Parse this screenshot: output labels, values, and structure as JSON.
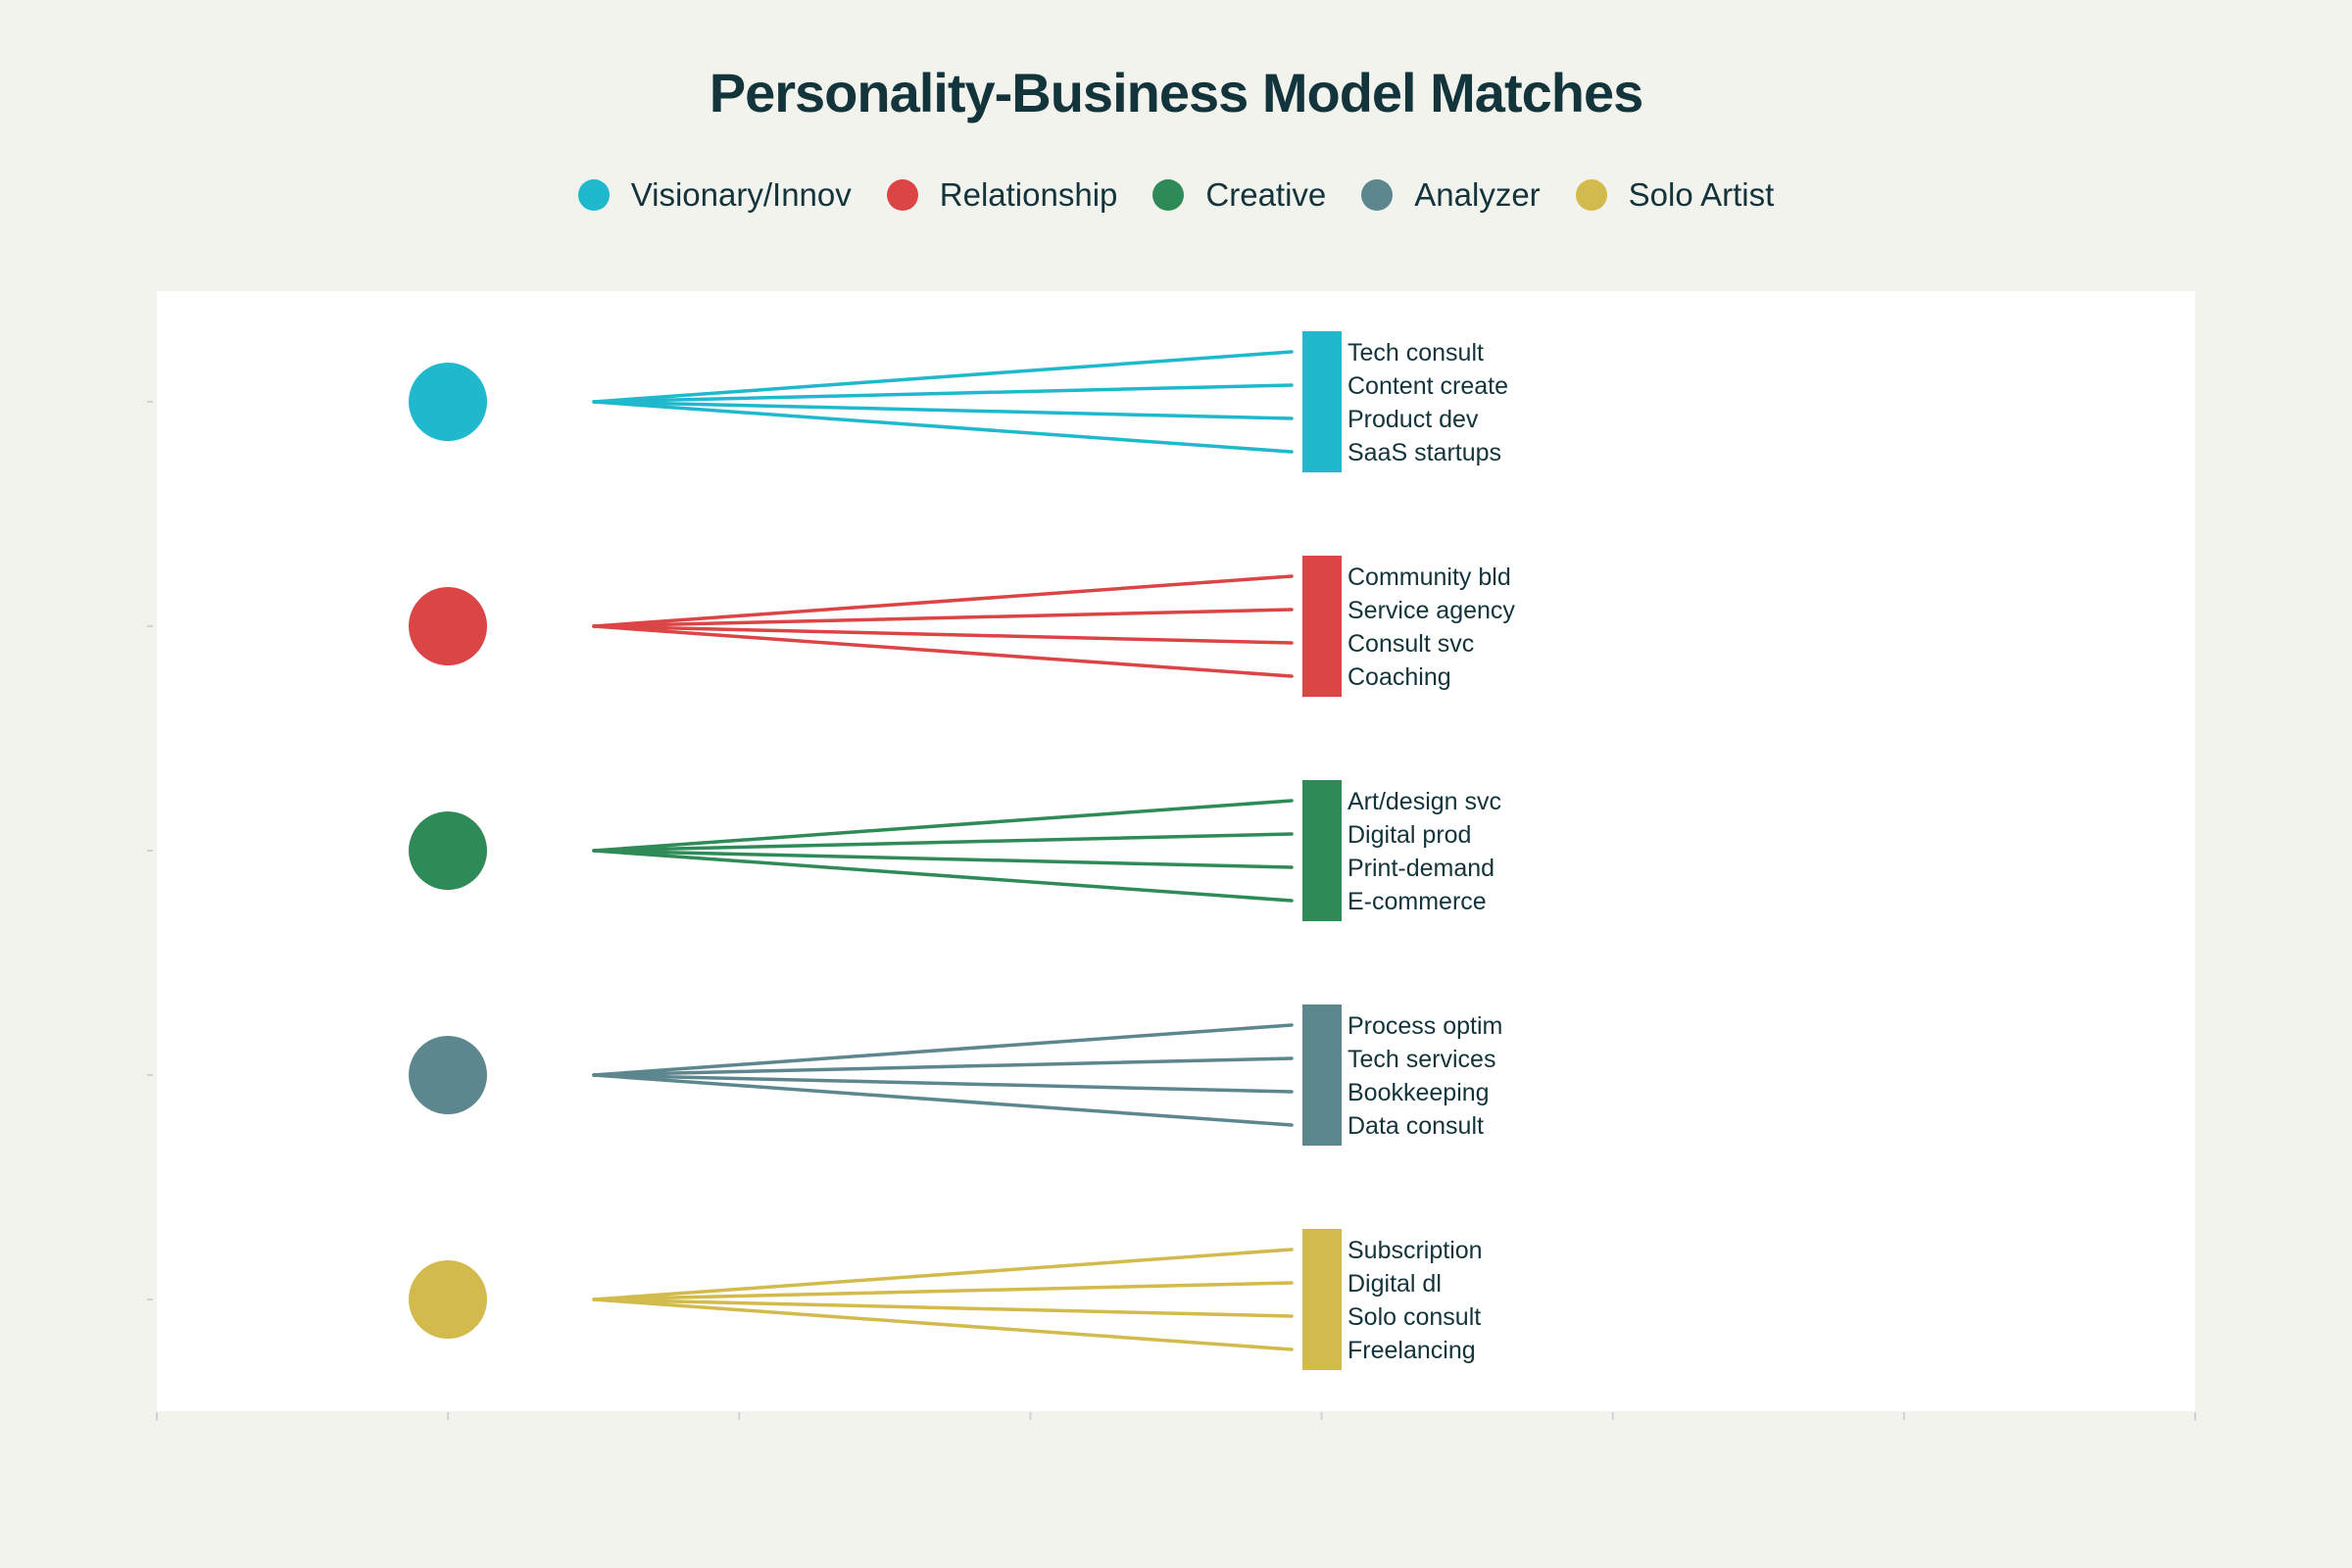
{
  "chart_data": {
    "type": "diagram",
    "title": "Personality-Business Model Matches",
    "colors": {
      "background": "#f3f3ee",
      "plot_background": "#ffffff",
      "text": "#13343b",
      "axis": "#cfd3d6"
    },
    "legend_position": "top-center",
    "series": [
      {
        "name": "Visionary/Innov",
        "color": "#1fb8cd",
        "models": [
          "Tech consult",
          "Content create",
          "Product dev",
          "SaaS startups"
        ]
      },
      {
        "name": "Relationship",
        "color": "#db4545",
        "models": [
          "Community bld",
          "Service agency",
          "Consult svc",
          "Coaching"
        ]
      },
      {
        "name": "Creative",
        "color": "#2e8b57",
        "models": [
          "Art/design svc",
          "Digital prod",
          "Print-demand",
          "E-commerce"
        ]
      },
      {
        "name": "Analyzer",
        "color": "#5d878f",
        "models": [
          "Process optim",
          "Tech services",
          "Bookkeeping",
          "Data consult"
        ]
      },
      {
        "name": "Solo Artist",
        "color": "#d2ba4c",
        "models": [
          "Subscription",
          "Digital dl",
          "Solo consult",
          "Freelancing"
        ]
      }
    ]
  }
}
